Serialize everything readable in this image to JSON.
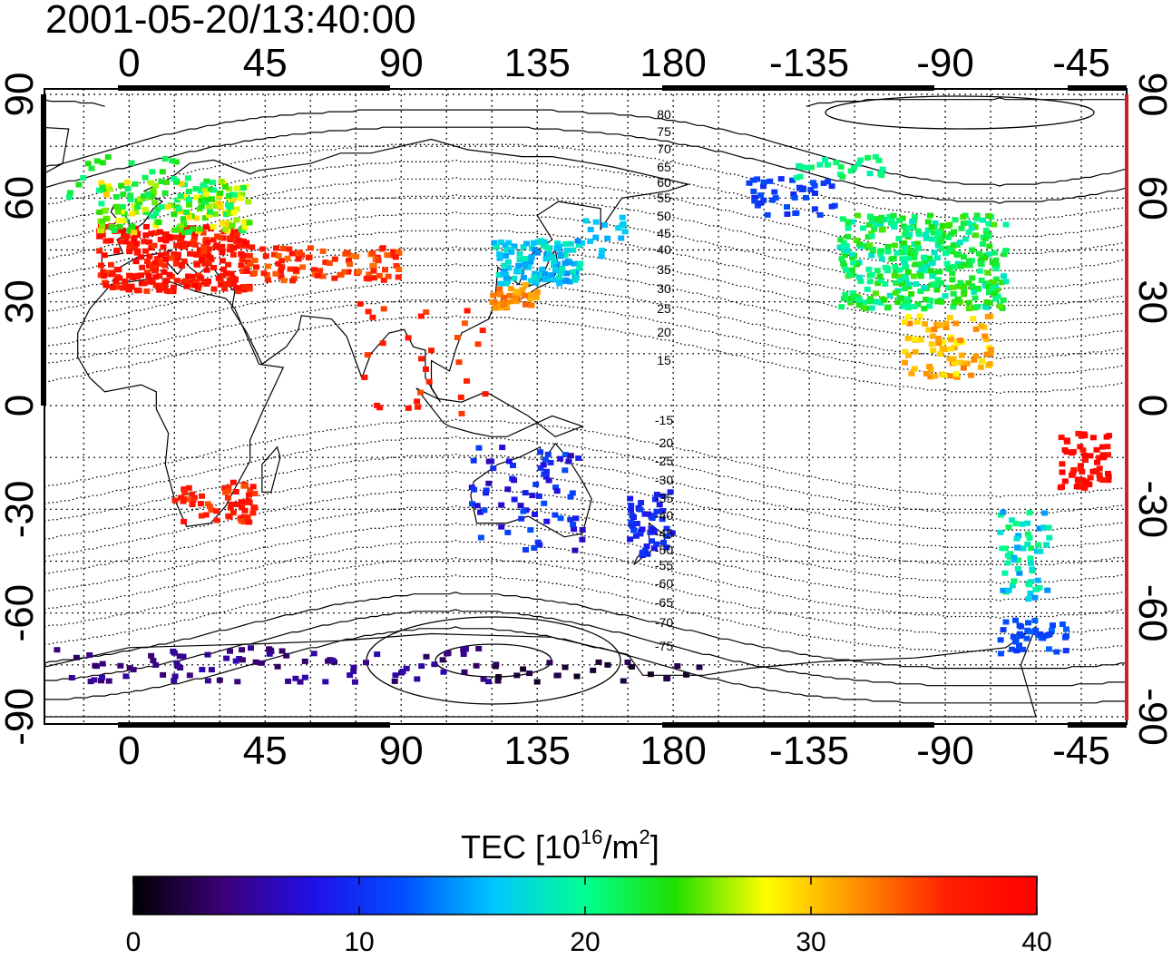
{
  "title": "2001-05-20/13:40:00",
  "map": {
    "lon_ticks_top": [
      "0",
      "45",
      "90",
      "135",
      "180",
      "-135",
      "-90",
      "-45"
    ],
    "lon_ticks_bottom": [
      "0",
      "45",
      "90",
      "135",
      "180",
      "-135",
      "-90",
      "-45"
    ],
    "lat_ticks_left": [
      "90",
      "60",
      "30",
      "0",
      "-30",
      "-60",
      "-90"
    ],
    "lat_ticks_right": [
      "90",
      "60",
      "30",
      "0",
      "-30",
      "-60",
      "-90"
    ],
    "contour_labels_north": [
      "80",
      "75",
      "70",
      "65",
      "60",
      "55",
      "50",
      "45",
      "40",
      "35",
      "30",
      "25",
      "20",
      "15"
    ],
    "contour_labels_south": [
      "-15",
      "-20",
      "-25",
      "-30",
      "-35",
      "-40",
      "-45",
      "-50",
      "-55",
      "-60",
      "-65",
      "-70",
      "-75"
    ],
    "grid": true
  },
  "colorbar": {
    "label_main": "TEC  [10",
    "label_sup1": "16",
    "label_mid": "/m",
    "label_sup2": "2",
    "label_end": "]",
    "min": 0,
    "max": 40,
    "ticks": [
      "0",
      "10",
      "20",
      "30",
      "40"
    ],
    "colors": [
      "#000000",
      "#3c0078",
      "#2010e8",
      "#0050ff",
      "#00c8ff",
      "#00ff90",
      "#20e000",
      "#ffff00",
      "#ff9000",
      "#ff2000",
      "#ff0000"
    ]
  },
  "regions": [
    {
      "name": "western-europe",
      "tec": 38
    },
    {
      "name": "northern-europe",
      "tec": 24
    },
    {
      "name": "southern-africa",
      "tec": 37
    },
    {
      "name": "central-asia",
      "tec": 36
    },
    {
      "name": "east-asia-japan",
      "tec": 18
    },
    {
      "name": "southern-japan",
      "tec": 34
    },
    {
      "name": "australia",
      "tec": 9
    },
    {
      "name": "new-zealand",
      "tec": 9
    },
    {
      "name": "antarctic-arc",
      "tec": 4
    },
    {
      "name": "north-america",
      "tec": 22
    },
    {
      "name": "alaska",
      "tec": 10
    },
    {
      "name": "central-america",
      "tec": 31
    },
    {
      "name": "brazil",
      "tec": 39
    },
    {
      "name": "southern-south-america",
      "tec": 16
    },
    {
      "name": "antarctic-peninsula",
      "tec": 11
    }
  ]
}
